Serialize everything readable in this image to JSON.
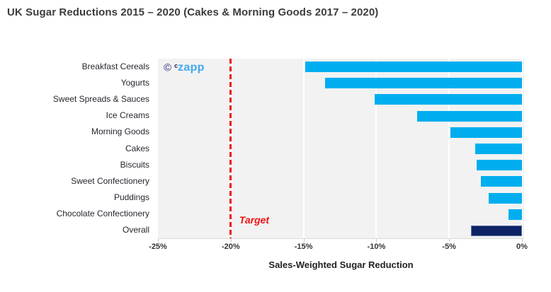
{
  "title": "UK Sugar Reductions 2015 – 2020 (Cakes & Morning Goods 2017 – 2020)",
  "watermark": {
    "copyright_symbol": "©",
    "brand_small": "c",
    "brand": "zapp"
  },
  "chart_data": {
    "type": "bar",
    "orientation": "horizontal",
    "title": "UK Sugar Reductions 2015 – 2020 (Cakes & Morning Goods 2017 – 2020)",
    "categories": [
      "Breakfast Cereals",
      "Yogurts",
      "Sweet Spreads & Sauces",
      "Ice Creams",
      "Morning Goods",
      "Cakes",
      "Biscuits",
      "Sweet Confectionery",
      "Puddings",
      "Chocolate Confectionery",
      "Overall"
    ],
    "values": [
      -14.9,
      -13.5,
      -10.1,
      -7.2,
      -4.9,
      -3.2,
      -3.1,
      -2.8,
      -2.3,
      -0.9,
      -3.5
    ],
    "xlabel": "Sales-Weighted Sugar Reduction",
    "x_ticks": [
      "-25%",
      "-20%",
      "-15%",
      "-10%",
      "-5%",
      "0%"
    ],
    "x_tick_values": [
      -25,
      -20,
      -15,
      -10,
      -5,
      0
    ],
    "xlim": [
      -25,
      0
    ],
    "grid": true,
    "legend": false,
    "highlight_category": "Overall",
    "target_line": {
      "value": -20,
      "label": "Target",
      "style": "dashed"
    },
    "colors": {
      "bar": "#00aeef",
      "overall_fill": "#0e2365",
      "overall_border": "#5c6fa4",
      "plot_bg": "#f2f2f2",
      "gridline": "#ffffff",
      "target": "#f01212",
      "title_text": "#3d3d3d"
    }
  }
}
